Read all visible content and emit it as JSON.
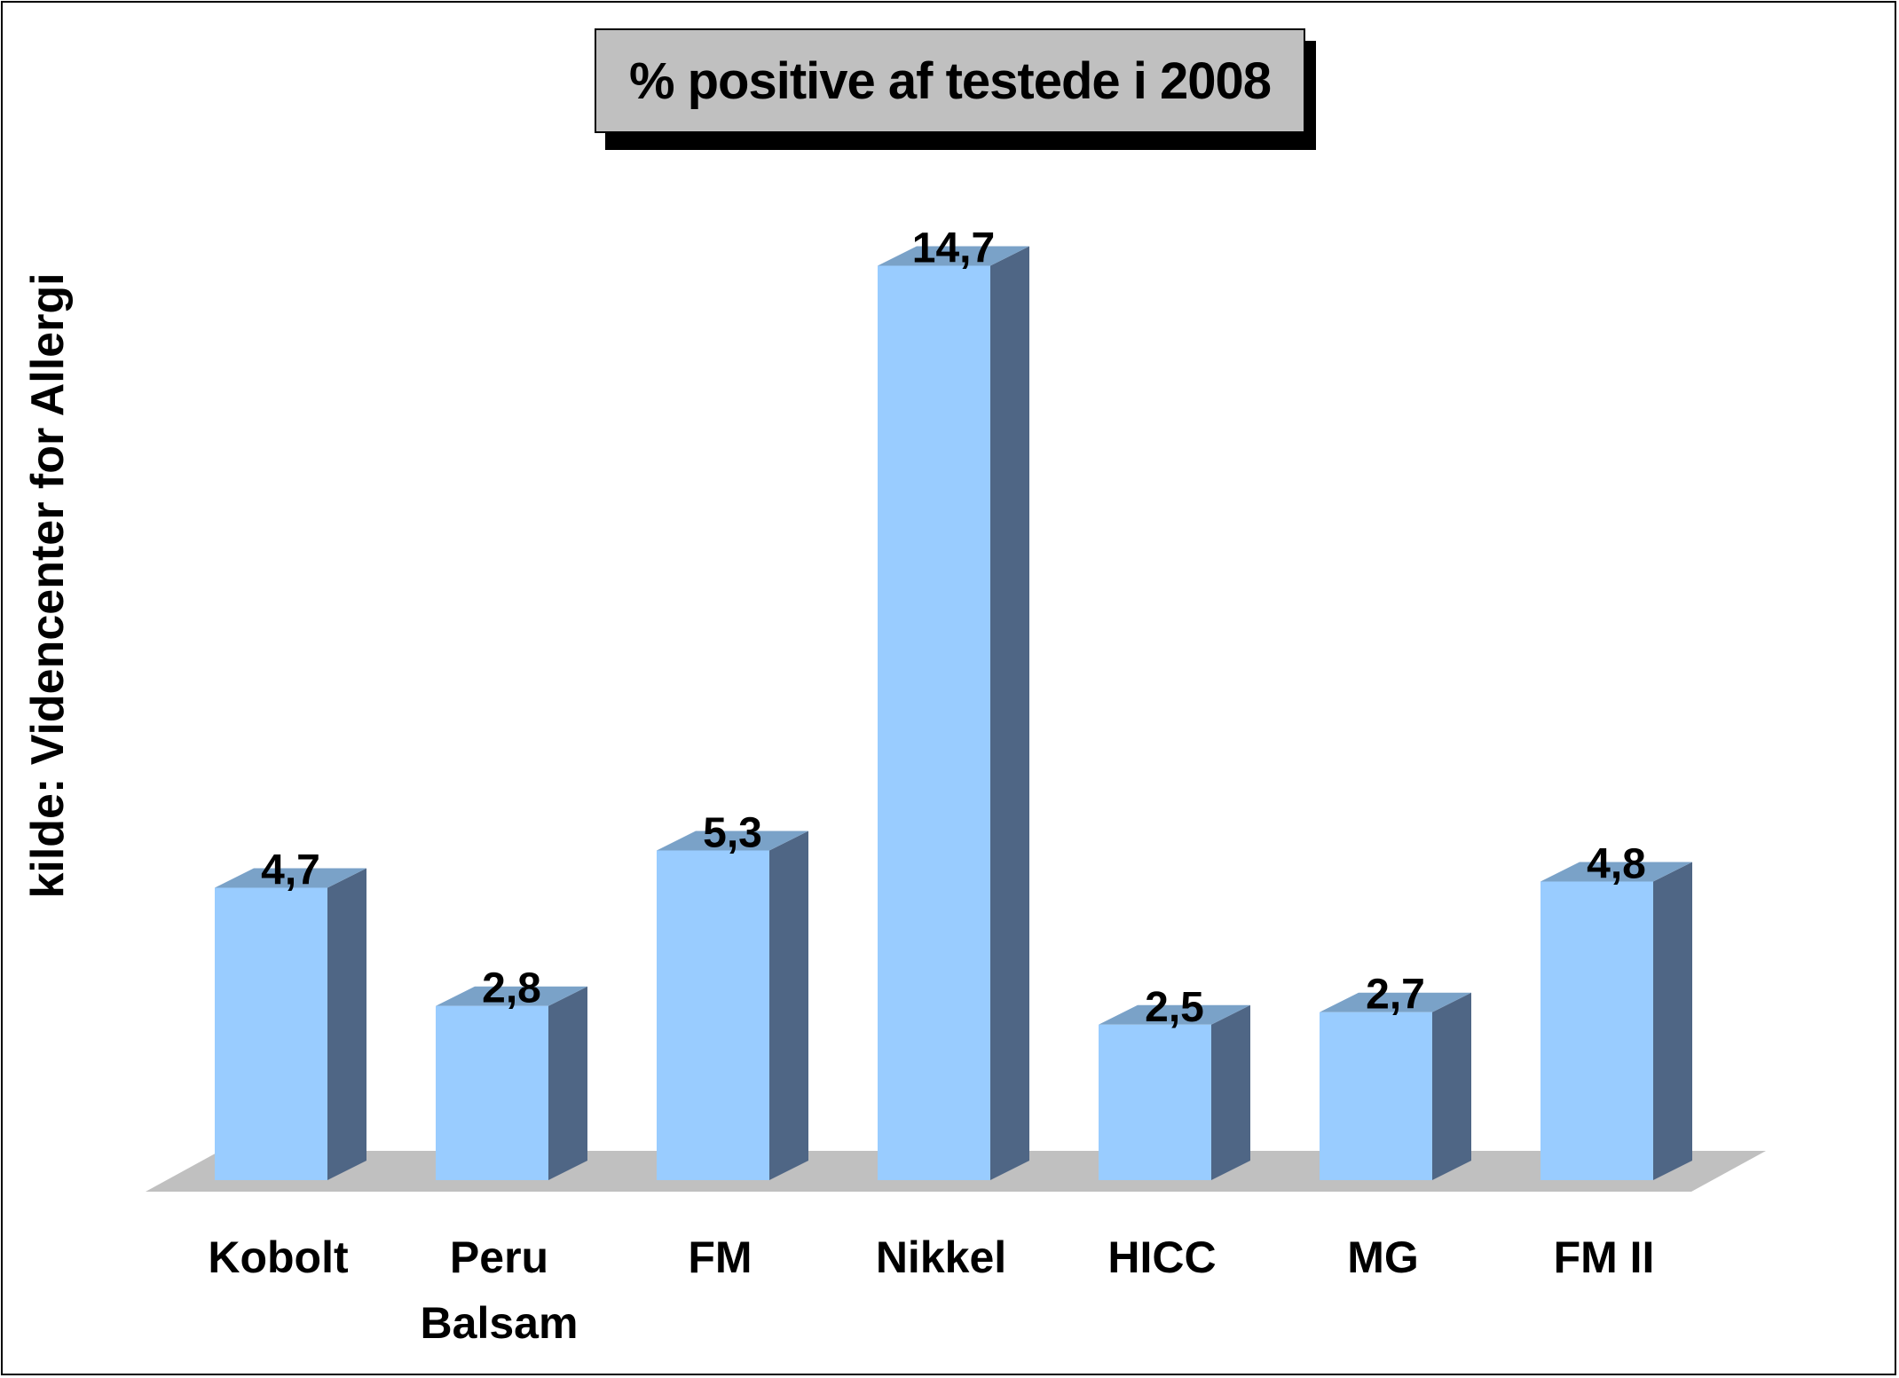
{
  "chart_data": {
    "type": "bar",
    "title": "% positive af testede i 2008",
    "ylabel": "kilde: Videncenter for Allergi",
    "xlabel": "",
    "categories": [
      "Kobolt",
      "Peru\nBalsam",
      "FM",
      "Nikkel",
      "HICC",
      "MG",
      "FM II"
    ],
    "values": [
      4.7,
      2.8,
      5.3,
      14.7,
      2.5,
      2.7,
      4.8
    ],
    "value_labels": [
      "4,7",
      "2,8",
      "5,3",
      "14,7",
      "2,5",
      "2,7",
      "4,8"
    ],
    "ylim": [
      0,
      15
    ],
    "grid": false,
    "legend": "none",
    "style": "3d-column",
    "colors": {
      "bar_front": "#99ccff",
      "bar_top": "#7aa2c8",
      "bar_side": "#4f6685",
      "floor": "#c0c0c0",
      "title_box": "#c0c0c0"
    }
  }
}
